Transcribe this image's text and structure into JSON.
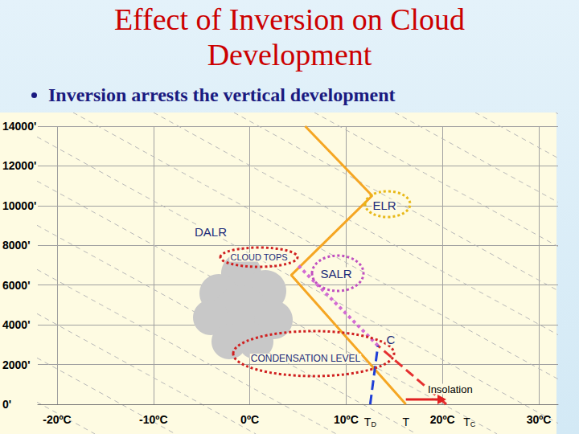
{
  "slide": {
    "title": "Effect of Inversion on Cloud Development",
    "bullets": [
      "Inversion arrests the vertical development"
    ]
  },
  "chart_data": {
    "type": "line",
    "xlim": [
      -22,
      32
    ],
    "xticks": [
      {
        "value": -20,
        "label": "-20ºC"
      },
      {
        "value": -10,
        "label": "-10ºC"
      },
      {
        "value": 0,
        "label": "0ºC"
      },
      {
        "value": 10,
        "label": "10ºC"
      },
      {
        "value": 20,
        "label": "20ºC"
      },
      {
        "value": 30,
        "label": "30ºC"
      }
    ],
    "ylim": [
      0,
      14000
    ],
    "yticks": [
      {
        "value": 0,
        "label": "0'"
      },
      {
        "value": 2000,
        "label": "2000'"
      },
      {
        "value": 4000,
        "label": "4000'"
      },
      {
        "value": 6000,
        "label": "6000'"
      },
      {
        "value": 8000,
        "label": "8000'"
      },
      {
        "value": 10000,
        "label": "10000'"
      },
      {
        "value": 12000,
        "label": "12000'"
      },
      {
        "value": 14000,
        "label": "14000'"
      }
    ],
    "grid": true,
    "series": [
      {
        "color": "#f5a623",
        "line_style": "solid",
        "x": [
          16.2,
          4.3,
          12.7,
          5.75
        ],
        "values": [
          0,
          6500,
          10500,
          14000
        ]
      },
      {
        "color": "#d36bd3",
        "line_style": "dotted",
        "x": [
          13.3,
          5.0
        ],
        "values": [
          2950,
          7000
        ]
      },
      {
        "color": "#e53030",
        "line_style": "dashed",
        "x": [
          20.4,
          13.3
        ],
        "values": [
          0,
          2950
        ]
      },
      {
        "color": "#1f3fd6",
        "line_style": "dashed",
        "x": [
          12.5,
          13.3
        ],
        "values": [
          0,
          2950
        ]
      }
    ],
    "annotations": {
      "elr": "ELR",
      "dalr": "DALR",
      "cloud_tops": "CLOUD TOPS",
      "salr": "SALR",
      "c": "C",
      "condensation_level": "CONDENSATION LEVEL"
    },
    "temperature_marks": [
      {
        "label": "T",
        "sub": "D",
        "x": 12.5
      },
      {
        "label": "T",
        "x": 16.2
      },
      {
        "label": "T",
        "sub": "C",
        "x": 20.4
      }
    ],
    "insolation": {
      "label": "Insolation",
      "from": 16.2,
      "to": 20.4
    }
  }
}
